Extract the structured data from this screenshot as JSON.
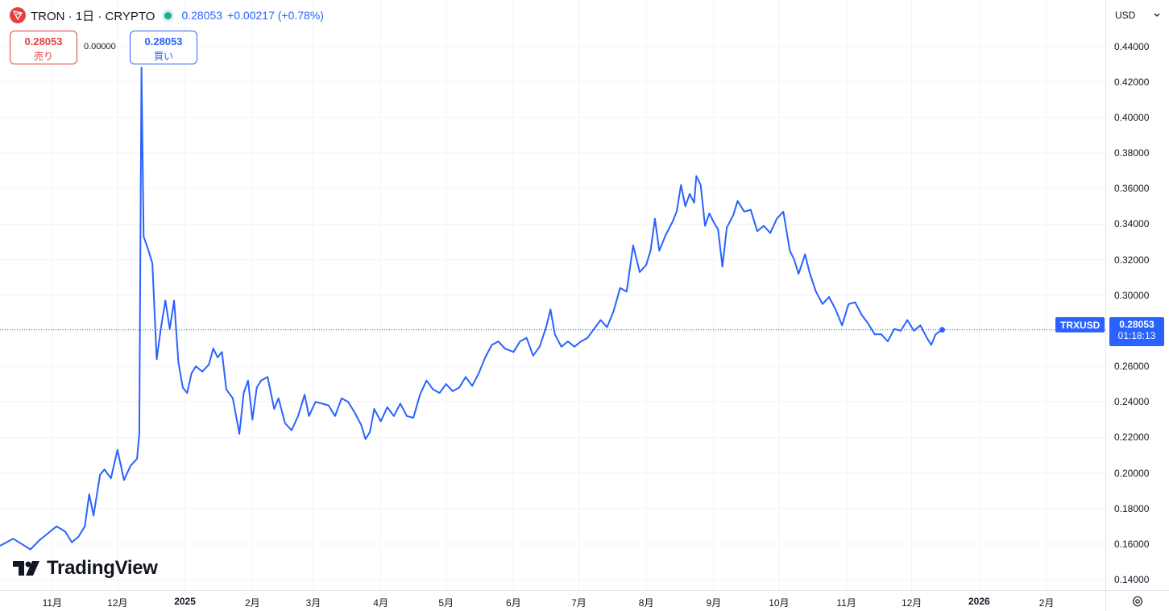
{
  "legend": {
    "title": "TRON · 1日 · CRYPTO",
    "price": "0.28053",
    "change": "+0.00217 (+0.78%)",
    "status_color": "#22ab94"
  },
  "trade": {
    "sell_price": "0.28053",
    "sell_label": "売り",
    "spread": "0.00000",
    "buy_price": "0.28053",
    "buy_label": "買い"
  },
  "currency": "USD",
  "symbol": "TRXUSD",
  "last_price": "0.28053",
  "countdown": "01:18:13",
  "logo_text": "TradingView",
  "icons": {
    "logo": "tron-logo-icon",
    "brand": "tradingview-logo-icon",
    "settings": "settings-icon",
    "dropdown": "chevron-down-icon"
  },
  "colors": {
    "line": "#2962ff",
    "sell": "#e5403f",
    "buy": "#2962ff",
    "grid": "#f0f3fa"
  },
  "chart_data": {
    "type": "line",
    "symbol": "TRXUSD",
    "ylim": [
      0.13,
      0.45
    ],
    "y_ticks": [
      "0.44000",
      "0.42000",
      "0.40000",
      "0.38000",
      "0.36000",
      "0.34000",
      "0.32000",
      "0.30000",
      "0.28000",
      "0.26000",
      "0.24000",
      "0.22000",
      "0.20000",
      "0.18000",
      "0.16000",
      "0.14000"
    ],
    "y_tick_values": [
      0.44,
      0.42,
      0.4,
      0.38,
      0.36,
      0.34,
      0.32,
      0.3,
      0.28,
      0.26,
      0.24,
      0.22,
      0.2,
      0.18,
      0.16,
      0.14
    ],
    "x_ticks": [
      {
        "label": "11月",
        "date": "2024-11-01"
      },
      {
        "label": "12月",
        "date": "2024-12-01"
      },
      {
        "label": "2025",
        "date": "2025-01-01",
        "bold": true
      },
      {
        "label": "2月",
        "date": "2025-02-01"
      },
      {
        "label": "3月",
        "date": "2025-03-01"
      },
      {
        "label": "4月",
        "date": "2025-04-01"
      },
      {
        "label": "5月",
        "date": "2025-05-01"
      },
      {
        "label": "6月",
        "date": "2025-06-01"
      },
      {
        "label": "7月",
        "date": "2025-07-01"
      },
      {
        "label": "8月",
        "date": "2025-08-01"
      },
      {
        "label": "9月",
        "date": "2025-09-01"
      },
      {
        "label": "10月",
        "date": "2025-10-01"
      },
      {
        "label": "11月",
        "date": "2025-11-01"
      },
      {
        "label": "12月",
        "date": "2025-12-01"
      },
      {
        "label": "2026",
        "date": "2026-01-01",
        "bold": true
      },
      {
        "label": "2月",
        "date": "2026-02-01"
      }
    ],
    "xlim": [
      "2024-10-08",
      "2026-02-28"
    ],
    "last_value": 0.28053,
    "series": [
      {
        "points": [
          [
            "2024-10-08",
            0.159
          ],
          [
            "2024-10-11",
            0.161
          ],
          [
            "2024-10-14",
            0.163
          ],
          [
            "2024-10-18",
            0.16
          ],
          [
            "2024-10-22",
            0.157
          ],
          [
            "2024-10-26",
            0.162
          ],
          [
            "2024-10-30",
            0.166
          ],
          [
            "2024-11-03",
            0.17
          ],
          [
            "2024-11-07",
            0.167
          ],
          [
            "2024-11-10",
            0.161
          ],
          [
            "2024-11-13",
            0.164
          ],
          [
            "2024-11-16",
            0.17
          ],
          [
            "2024-11-18",
            0.188
          ],
          [
            "2024-11-20",
            0.176
          ],
          [
            "2024-11-23",
            0.199
          ],
          [
            "2024-11-25",
            0.202
          ],
          [
            "2024-11-28",
            0.197
          ],
          [
            "2024-12-01",
            0.213
          ],
          [
            "2024-12-04",
            0.196
          ],
          [
            "2024-12-07",
            0.204
          ],
          [
            "2024-12-10",
            0.208
          ],
          [
            "2024-12-11",
            0.222
          ],
          [
            "2024-12-12",
            0.428
          ],
          [
            "2024-12-13",
            0.333
          ],
          [
            "2024-12-15",
            0.326
          ],
          [
            "2024-12-17",
            0.318
          ],
          [
            "2024-12-19",
            0.264
          ],
          [
            "2024-12-21",
            0.282
          ],
          [
            "2024-12-23",
            0.297
          ],
          [
            "2024-12-25",
            0.281
          ],
          [
            "2024-12-27",
            0.297
          ],
          [
            "2024-12-29",
            0.262
          ],
          [
            "2024-12-31",
            0.248
          ],
          [
            "2025-01-02",
            0.245
          ],
          [
            "2025-01-04",
            0.256
          ],
          [
            "2025-01-06",
            0.26
          ],
          [
            "2025-01-09",
            0.257
          ],
          [
            "2025-01-12",
            0.261
          ],
          [
            "2025-01-14",
            0.27
          ],
          [
            "2025-01-16",
            0.265
          ],
          [
            "2025-01-18",
            0.268
          ],
          [
            "2025-01-20",
            0.247
          ],
          [
            "2025-01-23",
            0.242
          ],
          [
            "2025-01-26",
            0.222
          ],
          [
            "2025-01-28",
            0.245
          ],
          [
            "2025-01-30",
            0.252
          ],
          [
            "2025-02-01",
            0.23
          ],
          [
            "2025-02-03",
            0.248
          ],
          [
            "2025-02-05",
            0.252
          ],
          [
            "2025-02-08",
            0.254
          ],
          [
            "2025-02-11",
            0.236
          ],
          [
            "2025-02-13",
            0.242
          ],
          [
            "2025-02-16",
            0.228
          ],
          [
            "2025-02-19",
            0.224
          ],
          [
            "2025-02-22",
            0.232
          ],
          [
            "2025-02-25",
            0.244
          ],
          [
            "2025-02-27",
            0.232
          ],
          [
            "2025-03-02",
            0.24
          ],
          [
            "2025-03-05",
            0.239
          ],
          [
            "2025-03-08",
            0.238
          ],
          [
            "2025-03-11",
            0.232
          ],
          [
            "2025-03-14",
            0.242
          ],
          [
            "2025-03-17",
            0.24
          ],
          [
            "2025-03-20",
            0.234
          ],
          [
            "2025-03-23",
            0.227
          ],
          [
            "2025-03-25",
            0.219
          ],
          [
            "2025-03-27",
            0.223
          ],
          [
            "2025-03-29",
            0.236
          ],
          [
            "2025-04-01",
            0.229
          ],
          [
            "2025-04-04",
            0.237
          ],
          [
            "2025-04-07",
            0.232
          ],
          [
            "2025-04-10",
            0.239
          ],
          [
            "2025-04-13",
            0.232
          ],
          [
            "2025-04-16",
            0.231
          ],
          [
            "2025-04-19",
            0.244
          ],
          [
            "2025-04-22",
            0.252
          ],
          [
            "2025-04-25",
            0.247
          ],
          [
            "2025-04-28",
            0.245
          ],
          [
            "2025-05-01",
            0.25
          ],
          [
            "2025-05-04",
            0.246
          ],
          [
            "2025-05-07",
            0.248
          ],
          [
            "2025-05-10",
            0.254
          ],
          [
            "2025-05-13",
            0.249
          ],
          [
            "2025-05-16",
            0.256
          ],
          [
            "2025-05-19",
            0.265
          ],
          [
            "2025-05-22",
            0.272
          ],
          [
            "2025-05-25",
            0.274
          ],
          [
            "2025-05-28",
            0.27
          ],
          [
            "2025-06-01",
            0.268
          ],
          [
            "2025-06-04",
            0.274
          ],
          [
            "2025-06-07",
            0.276
          ],
          [
            "2025-06-10",
            0.266
          ],
          [
            "2025-06-13",
            0.271
          ],
          [
            "2025-06-16",
            0.282
          ],
          [
            "2025-06-18",
            0.292
          ],
          [
            "2025-06-20",
            0.278
          ],
          [
            "2025-06-23",
            0.271
          ],
          [
            "2025-06-26",
            0.274
          ],
          [
            "2025-06-29",
            0.271
          ],
          [
            "2025-07-02",
            0.274
          ],
          [
            "2025-07-05",
            0.276
          ],
          [
            "2025-07-08",
            0.281
          ],
          [
            "2025-07-11",
            0.286
          ],
          [
            "2025-07-14",
            0.282
          ],
          [
            "2025-07-17",
            0.291
          ],
          [
            "2025-07-20",
            0.304
          ],
          [
            "2025-07-23",
            0.302
          ],
          [
            "2025-07-26",
            0.328
          ],
          [
            "2025-07-29",
            0.313
          ],
          [
            "2025-08-01",
            0.317
          ],
          [
            "2025-08-03",
            0.325
          ],
          [
            "2025-08-05",
            0.343
          ],
          [
            "2025-08-07",
            0.325
          ],
          [
            "2025-08-10",
            0.334
          ],
          [
            "2025-08-13",
            0.341
          ],
          [
            "2025-08-15",
            0.347
          ],
          [
            "2025-08-17",
            0.362
          ],
          [
            "2025-08-19",
            0.35
          ],
          [
            "2025-08-21",
            0.357
          ],
          [
            "2025-08-23",
            0.352
          ],
          [
            "2025-08-24",
            0.367
          ],
          [
            "2025-08-26",
            0.362
          ],
          [
            "2025-08-28",
            0.339
          ],
          [
            "2025-08-30",
            0.346
          ],
          [
            "2025-09-01",
            0.341
          ],
          [
            "2025-09-03",
            0.337
          ],
          [
            "2025-09-05",
            0.316
          ],
          [
            "2025-09-07",
            0.338
          ],
          [
            "2025-09-10",
            0.345
          ],
          [
            "2025-09-12",
            0.353
          ],
          [
            "2025-09-15",
            0.347
          ],
          [
            "2025-09-18",
            0.348
          ],
          [
            "2025-09-21",
            0.336
          ],
          [
            "2025-09-24",
            0.339
          ],
          [
            "2025-09-27",
            0.335
          ],
          [
            "2025-09-30",
            0.343
          ],
          [
            "2025-10-03",
            0.347
          ],
          [
            "2025-10-06",
            0.325
          ],
          [
            "2025-10-08",
            0.32
          ],
          [
            "2025-10-10",
            0.312
          ],
          [
            "2025-10-13",
            0.323
          ],
          [
            "2025-10-15",
            0.313
          ],
          [
            "2025-10-18",
            0.302
          ],
          [
            "2025-10-21",
            0.295
          ],
          [
            "2025-10-24",
            0.299
          ],
          [
            "2025-10-27",
            0.292
          ],
          [
            "2025-10-30",
            0.283
          ],
          [
            "2025-11-02",
            0.295
          ],
          [
            "2025-11-05",
            0.296
          ],
          [
            "2025-11-08",
            0.289
          ],
          [
            "2025-11-11",
            0.284
          ],
          [
            "2025-11-14",
            0.278
          ],
          [
            "2025-11-17",
            0.278
          ],
          [
            "2025-11-20",
            0.274
          ],
          [
            "2025-11-23",
            0.281
          ],
          [
            "2025-11-26",
            0.28
          ],
          [
            "2025-11-29",
            0.286
          ],
          [
            "2025-12-02",
            0.28
          ],
          [
            "2025-12-05",
            0.283
          ],
          [
            "2025-12-08",
            0.276
          ],
          [
            "2025-12-10",
            0.272
          ],
          [
            "2025-12-12",
            0.278
          ],
          [
            "2025-12-15",
            0.28053
          ]
        ]
      }
    ]
  }
}
